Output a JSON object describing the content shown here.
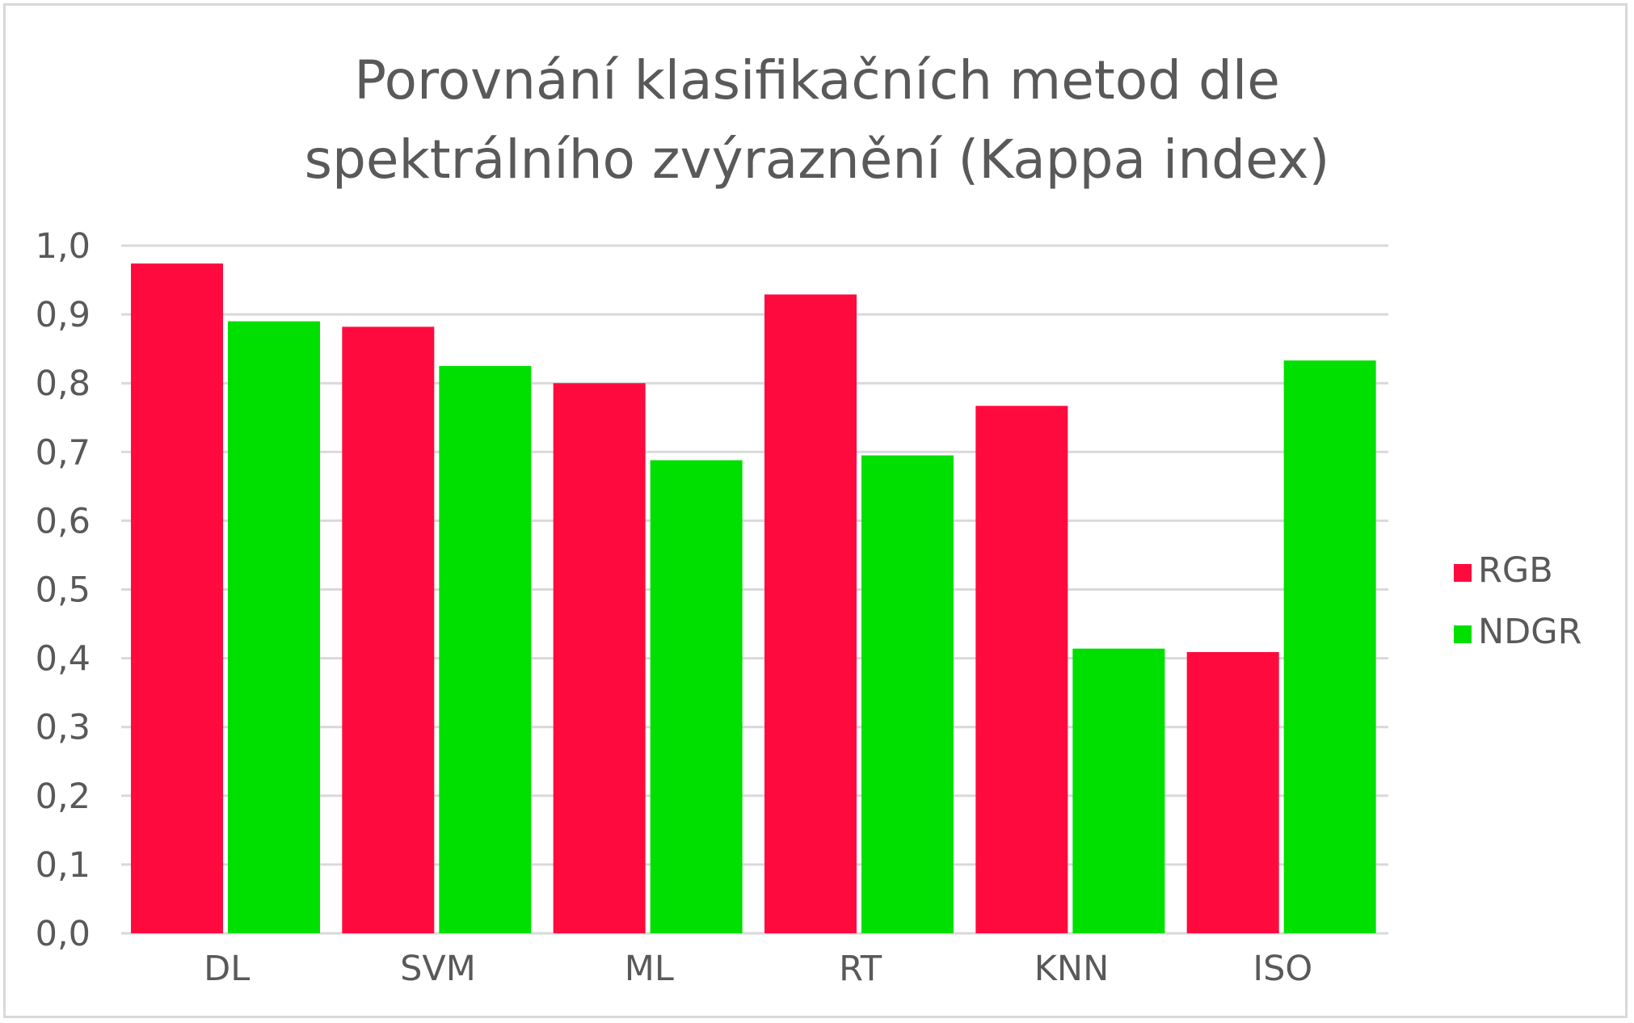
{
  "chart_data": {
    "type": "bar",
    "title": "Porovnání klasifikačních metod dle spektrálního zvýraznění (Kappa index)",
    "title_lines": [
      "Porovnání klasifikačních metod dle",
      "spektrálního zvýraznění (Kappa index)"
    ],
    "xlabel": "",
    "ylabel": "",
    "categories": [
      "DL",
      "SVM",
      "ML",
      "RT",
      "KNN",
      "ISO"
    ],
    "series": [
      {
        "name": "RGB",
        "color": "#ff0a3f",
        "values": [
          0.974,
          0.882,
          0.8,
          0.929,
          0.767,
          0.409
        ]
      },
      {
        "name": "NDGR",
        "color": "#00e000",
        "values": [
          0.89,
          0.825,
          0.688,
          0.695,
          0.414,
          0.833
        ]
      }
    ],
    "ylim": [
      0,
      1.0
    ],
    "yticks": [
      "0,0",
      "0,1",
      "0,2",
      "0,3",
      "0,4",
      "0,5",
      "0,6",
      "0,7",
      "0,8",
      "0,9",
      "1,0"
    ],
    "grid": true,
    "legend_position": "right"
  }
}
